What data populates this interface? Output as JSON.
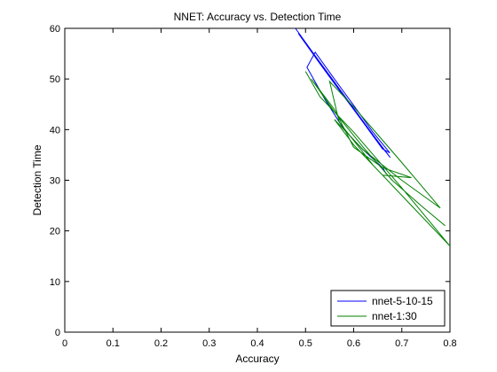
{
  "chart_data": {
    "type": "line",
    "title": "NNET: Accuracy vs. Detection Time",
    "xlabel": "Accuracy",
    "ylabel": "Detection Time",
    "xlim": [
      0,
      0.8
    ],
    "ylim": [
      0,
      60
    ],
    "xticks": [
      0,
      0.1,
      0.2,
      0.3,
      0.4,
      0.5,
      0.6,
      0.7,
      0.8
    ],
    "xtick_labels": [
      "0",
      "0.1",
      "0.2",
      "0.3",
      "0.4",
      "0.5",
      "0.6",
      "0.7",
      "0.8"
    ],
    "yticks": [
      0,
      10,
      20,
      30,
      40,
      50,
      60
    ],
    "ytick_labels": [
      "0",
      "10",
      "20",
      "30",
      "40",
      "50",
      "60"
    ],
    "grid": false,
    "legend_position": "bottom-right",
    "series": [
      {
        "name": "nnet-5-10-15",
        "color": "#0000ff",
        "x": [
          0.479,
          0.52,
          0.56,
          0.6,
          0.64,
          0.676,
          0.65,
          0.61,
          0.57,
          0.53,
          0.485,
          0.5,
          0.54,
          0.58,
          0.62,
          0.66,
          0.675,
          0.64,
          0.6,
          0.56,
          0.52,
          0.503,
          0.54,
          0.58,
          0.62,
          0.66,
          0.668
        ],
        "y": [
          60,
          54.6,
          49.4,
          44.2,
          39.0,
          34.5,
          37.6,
          42.7,
          47.8,
          53.0,
          59.0,
          57.0,
          51.8,
          46.6,
          41.4,
          36.2,
          35.4,
          39.5,
          44.8,
          50.0,
          55.3,
          52.3,
          46.0,
          40.0,
          36.0,
          32.5,
          31.2
        ]
      },
      {
        "name": "nnet-1:30",
        "color": "#008000",
        "x": [
          0.5,
          0.53,
          0.6,
          0.7,
          0.8,
          0.72,
          0.64,
          0.57,
          0.55,
          0.6,
          0.65,
          0.7,
          0.74,
          0.78,
          0.7,
          0.62,
          0.56,
          0.6,
          0.66,
          0.72,
          0.66,
          0.6,
          0.56,
          0.512,
          0.56,
          0.62,
          0.68,
          0.74,
          0.79
        ],
        "y": [
          51.5,
          46.5,
          39.5,
          28.5,
          17.0,
          25.0,
          33.0,
          41.5,
          49.5,
          44.5,
          39.0,
          33.5,
          29.0,
          24.5,
          30.0,
          36.0,
          42.0,
          37.0,
          31.0,
          30.5,
          32.5,
          36.5,
          44.0,
          50.0,
          43.5,
          36.5,
          30.0,
          25.0,
          21.0
        ]
      }
    ]
  }
}
